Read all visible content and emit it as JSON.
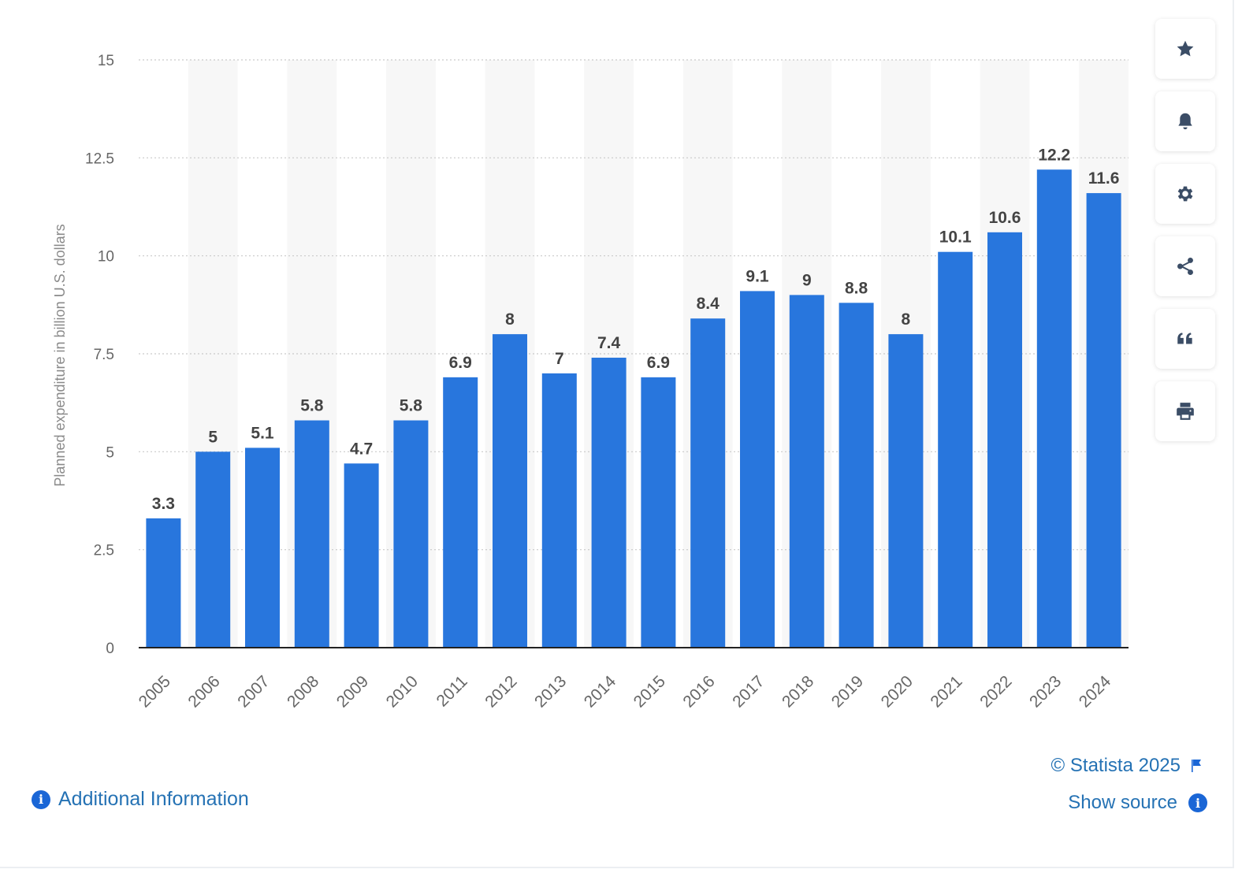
{
  "chart_data": {
    "type": "bar",
    "categories": [
      "2005",
      "2006",
      "2007",
      "2008",
      "2009",
      "2010",
      "2011",
      "2012",
      "2013",
      "2014",
      "2015",
      "2016",
      "2017",
      "2018",
      "2019",
      "2020",
      "2021",
      "2022",
      "2023",
      "2024"
    ],
    "values": [
      3.3,
      5,
      5.1,
      5.8,
      4.7,
      5.8,
      6.9,
      8,
      7,
      7.4,
      6.9,
      8.4,
      9.1,
      9,
      8.8,
      8,
      10.1,
      10.6,
      12.2,
      11.6
    ],
    "value_labels": [
      "3.3",
      "5",
      "5.1",
      "5.8",
      "4.7",
      "5.8",
      "6.9",
      "8",
      "7",
      "7.4",
      "6.9",
      "8.4",
      "9.1",
      "9",
      "8.8",
      "8",
      "10.1",
      "10.6",
      "12.2",
      "11.6"
    ],
    "ylabel": "Planned expenditure in billion U.S. dollars",
    "xlabel": "",
    "ylim": [
      0,
      15
    ],
    "yticks": [
      0,
      2.5,
      5,
      7.5,
      10,
      12.5,
      15
    ],
    "ytick_labels": [
      "0",
      "2.5",
      "5",
      "7.5",
      "10",
      "12.5",
      "15"
    ],
    "grid": true,
    "bar_color": "#2876dd",
    "band_color": "#f7f7f7"
  },
  "toolbar": {
    "icons": [
      "star-icon",
      "bell-icon",
      "gear-icon",
      "share-icon",
      "quote-icon",
      "print-icon"
    ]
  },
  "footer": {
    "additional_info": "Additional Information",
    "copyright": "© Statista 2025",
    "show_source": "Show source",
    "info_glyph": "i"
  },
  "colors": {
    "link": "#2572b4",
    "icon": "#3b4d66",
    "accent": "#1a66d6"
  }
}
